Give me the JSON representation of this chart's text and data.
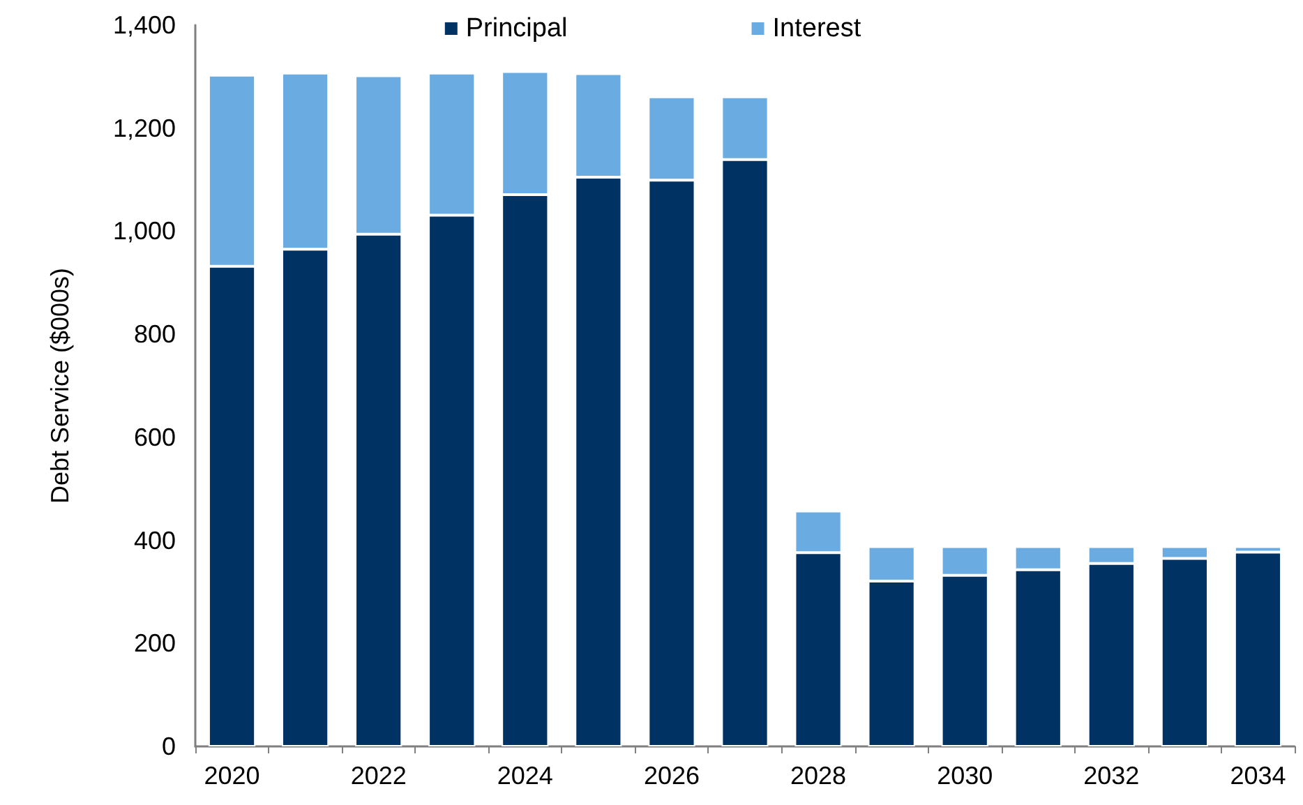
{
  "chart_data": {
    "type": "bar",
    "stacked": true,
    "ylabel": "Debt Service ($000s)",
    "categories": [
      "2020",
      null,
      "2022",
      null,
      "2024",
      null,
      "2026",
      null,
      "2028",
      null,
      "2030",
      null,
      "2032",
      null,
      "2034"
    ],
    "series": [
      {
        "name": "Principal",
        "color": "#003263",
        "values": [
          932,
          965,
          994,
          1031,
          1071,
          1105,
          1099,
          1139,
          376,
          321,
          332,
          343,
          355,
          365,
          377
        ]
      },
      {
        "name": "Interest",
        "color": "#6aabe2",
        "values": [
          371,
          342,
          308,
          276,
          239,
          201,
          162,
          122,
          81,
          67,
          56,
          45,
          33,
          23,
          11
        ]
      }
    ],
    "ylim": [
      0,
      1400
    ],
    "yticks": [
      0,
      200,
      400,
      600,
      800,
      {
        "value": 1000,
        "label": "1,000"
      },
      {
        "value": 1200,
        "label": "1,200"
      },
      {
        "value": 1400,
        "label": "1,400"
      }
    ],
    "grid": false,
    "legend": "top"
  }
}
